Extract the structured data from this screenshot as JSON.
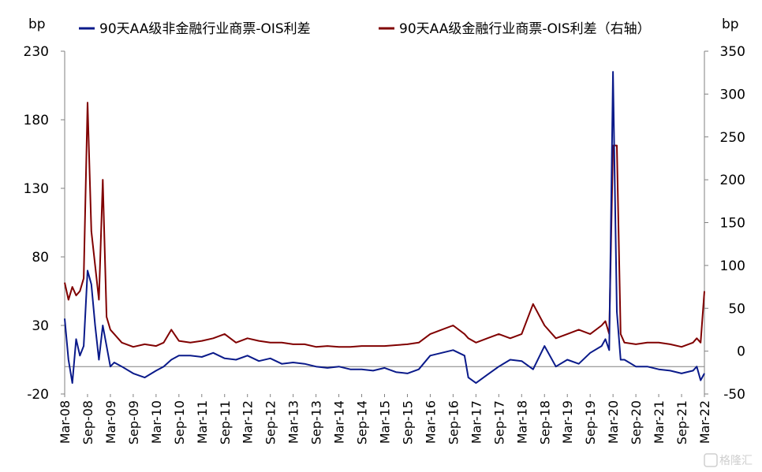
{
  "chart_data": {
    "type": "line",
    "left_unit": "bp",
    "right_unit": "bp",
    "legend": [
      {
        "label": "90天AA级非金融行业商票-OIS利差",
        "color": "#0a1a8a",
        "axis": "left"
      },
      {
        "label": "90天AA级金融行业商票-OIS利差（右轴）",
        "color": "#800000",
        "axis": "right"
      }
    ],
    "left_axis": {
      "min": -20,
      "max": 230,
      "ticks": [
        "230",
        "180",
        "130",
        "80",
        "30",
        "-20"
      ]
    },
    "right_axis": {
      "min": -50,
      "max": 350,
      "ticks": [
        "350",
        "300",
        "250",
        "200",
        "150",
        "100",
        "50",
        "0",
        "-50"
      ]
    },
    "x_range": [
      "2008-03",
      "2022-03"
    ],
    "x_ticks": [
      "Mar-08",
      "Sep-08",
      "Mar-09",
      "Sep-09",
      "Mar-10",
      "Sep-10",
      "Mar-11",
      "Sep-11",
      "Mar-12",
      "Sep-12",
      "Mar-13",
      "Sep-13",
      "Mar-14",
      "Sep-14",
      "Mar-15",
      "Sep-15",
      "Mar-16",
      "Sep-16",
      "Mar-17",
      "Sep-17",
      "Mar-18",
      "Sep-18",
      "Mar-19",
      "Sep-19",
      "Mar-20",
      "Sep-20",
      "Mar-21",
      "Sep-21",
      "Mar-22"
    ],
    "series": [
      {
        "name": "90天AA级非金融行业商票-OIS利差",
        "axis": "left",
        "color": "#0a1a8a",
        "x": [
          "2008-03",
          "2008-04",
          "2008-05",
          "2008-06",
          "2008-07",
          "2008-08",
          "2008-09",
          "2008-10",
          "2008-11",
          "2008-12",
          "2009-01",
          "2009-02",
          "2009-03",
          "2009-04",
          "2009-06",
          "2009-09",
          "2009-12",
          "2010-03",
          "2010-05",
          "2010-07",
          "2010-09",
          "2010-12",
          "2011-03",
          "2011-06",
          "2011-09",
          "2011-12",
          "2012-03",
          "2012-06",
          "2012-09",
          "2012-12",
          "2013-03",
          "2013-06",
          "2013-09",
          "2013-12",
          "2014-03",
          "2014-06",
          "2014-09",
          "2014-12",
          "2015-03",
          "2015-06",
          "2015-09",
          "2015-12",
          "2016-03",
          "2016-06",
          "2016-09",
          "2016-12",
          "2017-01",
          "2017-03",
          "2017-06",
          "2017-09",
          "2017-12",
          "2018-03",
          "2018-06",
          "2018-09",
          "2018-12",
          "2019-03",
          "2019-06",
          "2019-09",
          "2019-12",
          "2020-01",
          "2020-02",
          "2020-03",
          "2020-04",
          "2020-05",
          "2020-06",
          "2020-09",
          "2020-12",
          "2021-03",
          "2021-06",
          "2021-09",
          "2021-12",
          "2022-01",
          "2022-02",
          "2022-03"
        ],
        "values": [
          35,
          5,
          -12,
          20,
          8,
          15,
          70,
          60,
          30,
          5,
          30,
          15,
          0,
          3,
          0,
          -5,
          -8,
          -3,
          0,
          5,
          8,
          8,
          7,
          10,
          6,
          5,
          8,
          4,
          6,
          2,
          3,
          2,
          0,
          -1,
          0,
          -2,
          -2,
          -3,
          -1,
          -4,
          -5,
          -2,
          8,
          10,
          12,
          8,
          -8,
          -12,
          -6,
          0,
          5,
          4,
          -2,
          15,
          0,
          5,
          2,
          10,
          15,
          20,
          12,
          215,
          40,
          5,
          5,
          0,
          0,
          -2,
          -3,
          -5,
          -3,
          0,
          -10,
          -5
        ]
      },
      {
        "name": "90天AA级金融行业商票-OIS利差（右轴）",
        "axis": "right",
        "color": "#800000",
        "x": [
          "2008-03",
          "2008-04",
          "2008-05",
          "2008-06",
          "2008-07",
          "2008-08",
          "2008-09",
          "2008-10",
          "2008-11",
          "2008-12",
          "2009-01",
          "2009-02",
          "2009-03",
          "2009-04",
          "2009-06",
          "2009-09",
          "2009-12",
          "2010-03",
          "2010-05",
          "2010-07",
          "2010-09",
          "2010-12",
          "2011-03",
          "2011-06",
          "2011-09",
          "2011-12",
          "2012-03",
          "2012-06",
          "2012-09",
          "2012-12",
          "2013-03",
          "2013-06",
          "2013-09",
          "2013-12",
          "2014-03",
          "2014-06",
          "2014-09",
          "2014-12",
          "2015-03",
          "2015-06",
          "2015-09",
          "2015-12",
          "2016-03",
          "2016-06",
          "2016-09",
          "2016-12",
          "2017-01",
          "2017-03",
          "2017-06",
          "2017-09",
          "2017-12",
          "2018-03",
          "2018-06",
          "2018-09",
          "2018-12",
          "2019-03",
          "2019-06",
          "2019-09",
          "2019-12",
          "2020-01",
          "2020-02",
          "2020-03",
          "2020-04",
          "2020-05",
          "2020-06",
          "2020-09",
          "2020-12",
          "2021-03",
          "2021-06",
          "2021-09",
          "2021-12",
          "2022-01",
          "2022-02",
          "2022-03"
        ],
        "values": [
          80,
          60,
          75,
          65,
          70,
          85,
          290,
          140,
          100,
          60,
          200,
          40,
          25,
          20,
          10,
          5,
          8,
          6,
          10,
          25,
          12,
          10,
          12,
          15,
          20,
          10,
          15,
          12,
          10,
          10,
          8,
          8,
          5,
          6,
          5,
          5,
          6,
          6,
          6,
          7,
          8,
          10,
          20,
          25,
          30,
          20,
          15,
          10,
          15,
          20,
          15,
          20,
          55,
          30,
          15,
          20,
          25,
          20,
          30,
          35,
          20,
          240,
          240,
          20,
          10,
          8,
          10,
          10,
          8,
          5,
          10,
          15,
          10,
          70
        ]
      }
    ],
    "colors": {
      "left_series": "#0a1a8a",
      "right_series": "#800000",
      "axis": "#808080",
      "zero_line": "#808080"
    },
    "grid": false,
    "legend_position": "top",
    "watermark": "格隆汇"
  }
}
